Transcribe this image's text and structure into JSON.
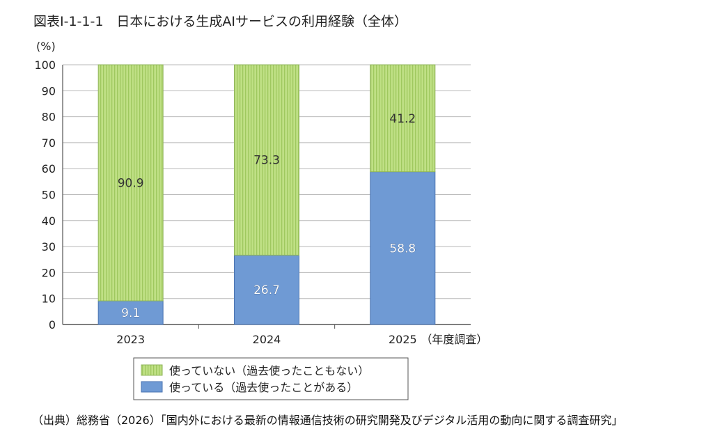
{
  "title": "図表Ⅰ-1-1-1　日本における生成AIサービスの利用経験（全体）",
  "source": "（出典）総務省（2026）「国内外における最新の情報通信技術の研究開発及びデジタル活用の動向に関する調査研究」",
  "colors": {
    "using": "#6f9ad4",
    "not_using": "#b7dc7c",
    "stripe": "#a6cf69",
    "grid": "#b8b8b8"
  },
  "chart_data": {
    "type": "bar",
    "stacked": true,
    "unit_label": "(%)",
    "x_note": "（年度調査）",
    "categories": [
      "2023",
      "2024",
      "2025"
    ],
    "series": [
      {
        "name": "使っている（過去使ったことがある）",
        "values": [
          9.1,
          26.7,
          58.8
        ]
      },
      {
        "name": "使っていない（過去使ったこともない）",
        "values": [
          90.9,
          73.3,
          41.2
        ]
      }
    ],
    "ylim": [
      0,
      100
    ],
    "yticks": [
      0,
      10,
      20,
      30,
      40,
      50,
      60,
      70,
      80,
      90,
      100
    ],
    "grid": true,
    "legend_position": "bottom",
    "legend_order": [
      1,
      0
    ]
  }
}
